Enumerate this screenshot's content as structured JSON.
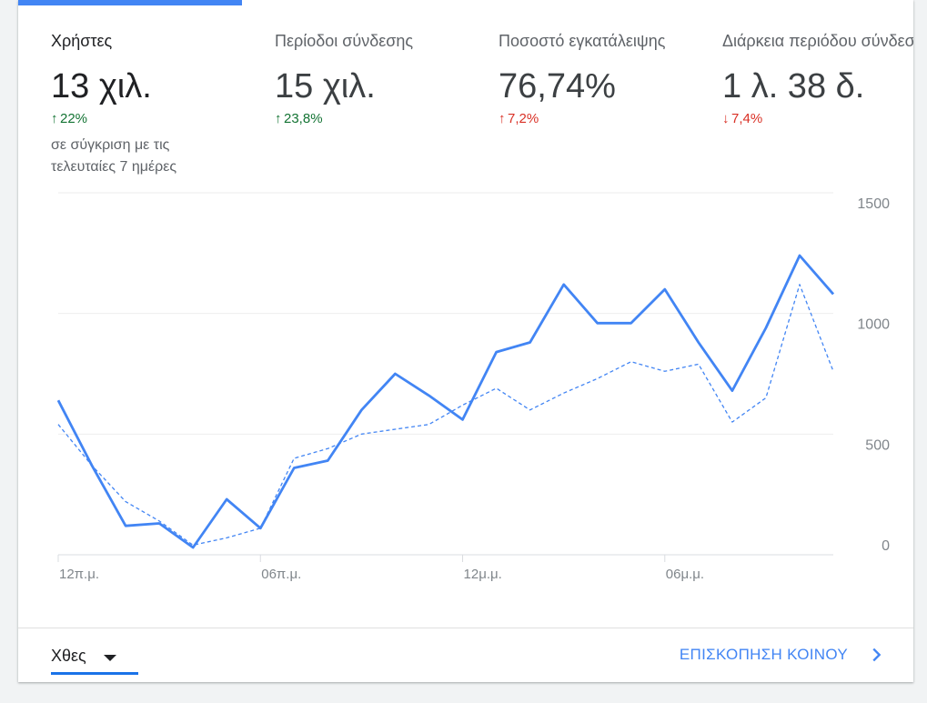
{
  "metrics": [
    {
      "label": "Χρήστες",
      "value": "13 χιλ.",
      "delta": "22%",
      "delta_dir": "up",
      "delta_color": "#137333"
    },
    {
      "label": "Περίοδοι σύνδεσης",
      "value": "15 χιλ.",
      "delta": "23,8%",
      "delta_dir": "up",
      "delta_color": "#137333"
    },
    {
      "label": "Ποσοστό εγκατάλειψης",
      "value": "76,74%",
      "delta": "7,2%",
      "delta_dir": "up",
      "delta_color": "#d93025"
    },
    {
      "label": "Διάρκεια περιόδου σύνδεσης",
      "value": "1 λ. 38 δ.",
      "delta": "7,4%",
      "delta_dir": "down",
      "delta_color": "#d93025"
    }
  ],
  "comparison_note": "σε σύγκριση με τις τελευταίες 7 ημέρες",
  "colors": {
    "accent": "#4285f4",
    "positive": "#137333",
    "negative": "#d93025"
  },
  "chart_data": {
    "type": "line",
    "x_tick_labels": [
      "12π.μ.",
      "06π.μ.",
      "12μ.μ.",
      "06μ.μ."
    ],
    "x_tick_index": [
      0,
      6,
      12,
      18
    ],
    "ylim": [
      0,
      1500
    ],
    "y_ticks": [
      0,
      500,
      1000,
      1500
    ],
    "grid": true,
    "series": [
      {
        "style": "solid",
        "color": "#4285f4",
        "values": [
          640,
          370,
          120,
          130,
          30,
          230,
          110,
          360,
          390,
          600,
          750,
          660,
          560,
          840,
          880,
          1120,
          960,
          960,
          1100,
          880,
          680,
          940,
          1240,
          1080
        ]
      },
      {
        "style": "dashed",
        "color": "#4285f4",
        "values": [
          540,
          370,
          220,
          140,
          40,
          70,
          110,
          400,
          440,
          500,
          520,
          540,
          620,
          690,
          600,
          670,
          730,
          800,
          760,
          790,
          550,
          650,
          1120,
          760
        ]
      }
    ]
  },
  "footer": {
    "date_range": "Χθες",
    "audience_link": "ΕΠΙΣΚΟΠΗΣΗ ΚΟΙΝΟΥ"
  }
}
